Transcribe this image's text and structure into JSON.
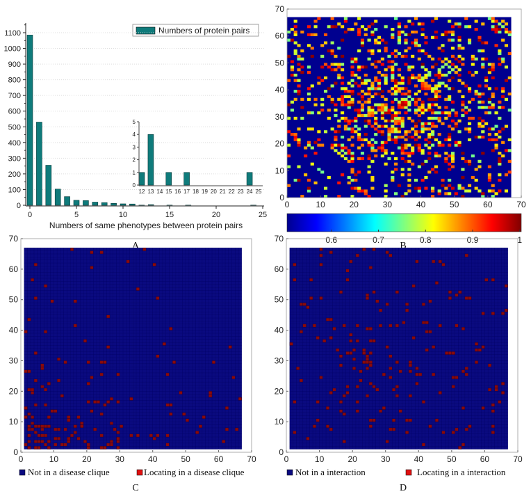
{
  "chart_data": [
    {
      "panel": "A",
      "type": "bar",
      "categories": [
        0,
        1,
        2,
        3,
        4,
        5,
        6,
        7,
        8,
        9,
        10,
        11,
        12,
        13,
        14,
        15,
        16,
        17,
        18,
        19,
        20,
        21,
        22,
        23,
        24
      ],
      "values": [
        1085,
        530,
        255,
        103,
        55,
        32,
        30,
        20,
        17,
        12,
        9,
        8,
        1,
        4,
        0,
        1,
        0,
        1,
        0,
        0,
        0,
        0,
        0,
        0,
        1
      ],
      "xlabel": "Numbers of same phenotypes between protein pairs",
      "ylabel": "",
      "xlim": [
        -1,
        25
      ],
      "ylim": [
        0,
        1150
      ],
      "xticks": [
        0,
        5,
        10,
        15,
        20,
        25
      ],
      "yticks": [
        0,
        100,
        200,
        300,
        400,
        500,
        600,
        700,
        800,
        900,
        1000,
        1100
      ],
      "legend": {
        "label": "Numbers of protein pairs",
        "position": "top-right"
      },
      "color": "#0f7b7b",
      "grid": true,
      "inset": {
        "type": "bar",
        "categories": [
          12,
          13,
          14,
          15,
          16,
          17,
          18,
          19,
          20,
          21,
          22,
          23,
          24,
          25
        ],
        "values": [
          1,
          4,
          0,
          1,
          0,
          1,
          0,
          0,
          0,
          0,
          0,
          0,
          1,
          0
        ],
        "ylim": [
          0,
          5
        ],
        "yticks": [
          0,
          1,
          2,
          3,
          4,
          5
        ]
      }
    },
    {
      "panel": "B",
      "type": "heatmap",
      "xlim": [
        0,
        70
      ],
      "ylim": [
        0,
        70
      ],
      "xticks": [
        0,
        10,
        20,
        30,
        40,
        50,
        60,
        70
      ],
      "yticks": [
        0,
        10,
        20,
        30,
        40,
        50,
        60,
        70
      ],
      "matrix_size": 67,
      "colormap": "jet",
      "colorbar": {
        "range": [
          0.51,
          1
        ],
        "ticks": [
          "0.6",
          "0.7",
          "0.8",
          "0.9",
          "1"
        ]
      }
    },
    {
      "panel": "C",
      "type": "heatmap",
      "xlim": [
        0,
        70
      ],
      "ylim": [
        0,
        70
      ],
      "xticks": [
        0,
        10,
        20,
        30,
        40,
        50,
        60,
        70
      ],
      "yticks": [
        0,
        10,
        20,
        30,
        40,
        50,
        60,
        70
      ],
      "matrix_size": 67,
      "legend": [
        {
          "label": "Not in a disease clique",
          "color": "#0a0a80"
        },
        {
          "label": "Locating in a disease clique",
          "color": "#e01010"
        }
      ],
      "cell_colors": {
        "off": "#0a0a80",
        "on": "#8b0a0a"
      }
    },
    {
      "panel": "D",
      "type": "heatmap",
      "xlim": [
        0,
        70
      ],
      "ylim": [
        0,
        70
      ],
      "xticks": [
        0,
        10,
        20,
        30,
        40,
        50,
        60,
        70
      ],
      "yticks": [
        0,
        10,
        20,
        30,
        40,
        50,
        60,
        70
      ],
      "matrix_size": 67,
      "legend": [
        {
          "label": "Not in a interaction",
          "color": "#0a0a80"
        },
        {
          "label": "Locating in a interaction",
          "color": "#e01010"
        }
      ],
      "cell_colors": {
        "off": "#0a0a80",
        "on": "#8b0a0a"
      }
    }
  ]
}
